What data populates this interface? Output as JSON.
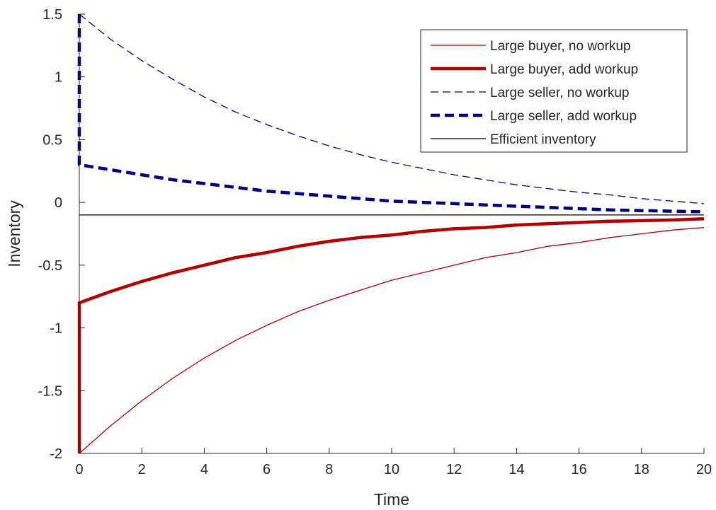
{
  "chart_data": {
    "type": "line",
    "xlabel": "Time",
    "ylabel": "Inventory",
    "xlim": [
      0,
      20
    ],
    "ylim": [
      -2,
      1.5
    ],
    "xticks": [
      0,
      2,
      4,
      6,
      8,
      10,
      12,
      14,
      16,
      18,
      20
    ],
    "xtick_labels": [
      "0",
      "2",
      "4",
      "6",
      "8",
      "10",
      "12",
      "14",
      "16",
      "18",
      "20"
    ],
    "yticks": [
      -2,
      -1.5,
      -1,
      -0.5,
      0,
      0.5,
      1,
      1.5
    ],
    "ytick_labels": [
      "-2",
      "-1.5",
      "-1",
      "-0.5",
      "0",
      "0.5",
      "1",
      "1.5"
    ],
    "grid": false,
    "legend_position": "top-right",
    "series": [
      {
        "name": "Large buyer, no workup",
        "color": "#b20000",
        "style": "solid-thin",
        "x": [
          0,
          1,
          2,
          3,
          4,
          5,
          6,
          7,
          8,
          9,
          10,
          11,
          12,
          13,
          14,
          15,
          16,
          17,
          18,
          19,
          20
        ],
        "y": [
          -2.0,
          -1.78,
          -1.58,
          -1.4,
          -1.24,
          -1.1,
          -0.98,
          -0.87,
          -0.78,
          -0.7,
          -0.62,
          -0.56,
          -0.5,
          -0.44,
          -0.4,
          -0.35,
          -0.32,
          -0.28,
          -0.25,
          -0.22,
          -0.2
        ]
      },
      {
        "name": "Large buyer, add workup",
        "color": "#b20000",
        "style": "solid-thick",
        "x": [
          0,
          0,
          1,
          2,
          3,
          4,
          5,
          6,
          7,
          8,
          9,
          10,
          11,
          12,
          13,
          14,
          15,
          16,
          17,
          18,
          19,
          20
        ],
        "y": [
          -2.0,
          -0.8,
          -0.71,
          -0.63,
          -0.56,
          -0.5,
          -0.44,
          -0.4,
          -0.35,
          -0.31,
          -0.28,
          -0.26,
          -0.23,
          -0.21,
          -0.2,
          -0.18,
          -0.17,
          -0.16,
          -0.15,
          -0.145,
          -0.14,
          -0.13
        ]
      },
      {
        "name": "Large seller, no workup",
        "color": "#00007f",
        "style": "dashed-thin",
        "x": [
          0,
          1,
          2,
          3,
          4,
          5,
          6,
          7,
          8,
          9,
          10,
          11,
          12,
          13,
          14,
          15,
          16,
          17,
          18,
          19,
          20
        ],
        "y": [
          1.5,
          1.3,
          1.13,
          0.98,
          0.84,
          0.72,
          0.62,
          0.53,
          0.45,
          0.38,
          0.32,
          0.27,
          0.22,
          0.18,
          0.14,
          0.11,
          0.08,
          0.06,
          0.03,
          0.01,
          -0.01
        ]
      },
      {
        "name": "Large seller, add workup",
        "color": "#00007f",
        "style": "dashed-thick",
        "x": [
          0,
          0,
          1,
          2,
          3,
          4,
          5,
          6,
          7,
          8,
          9,
          10,
          11,
          12,
          13,
          14,
          15,
          16,
          17,
          18,
          19,
          20
        ],
        "y": [
          1.5,
          0.3,
          0.26,
          0.22,
          0.18,
          0.15,
          0.12,
          0.09,
          0.07,
          0.05,
          0.03,
          0.01,
          0.0,
          -0.01,
          -0.02,
          -0.03,
          -0.04,
          -0.05,
          -0.06,
          -0.065,
          -0.07,
          -0.075
        ]
      },
      {
        "name": "Efficient inventory",
        "color": "#000000",
        "style": "solid-thin",
        "x": [
          0,
          20
        ],
        "y": [
          -0.1,
          -0.1
        ]
      }
    ]
  }
}
